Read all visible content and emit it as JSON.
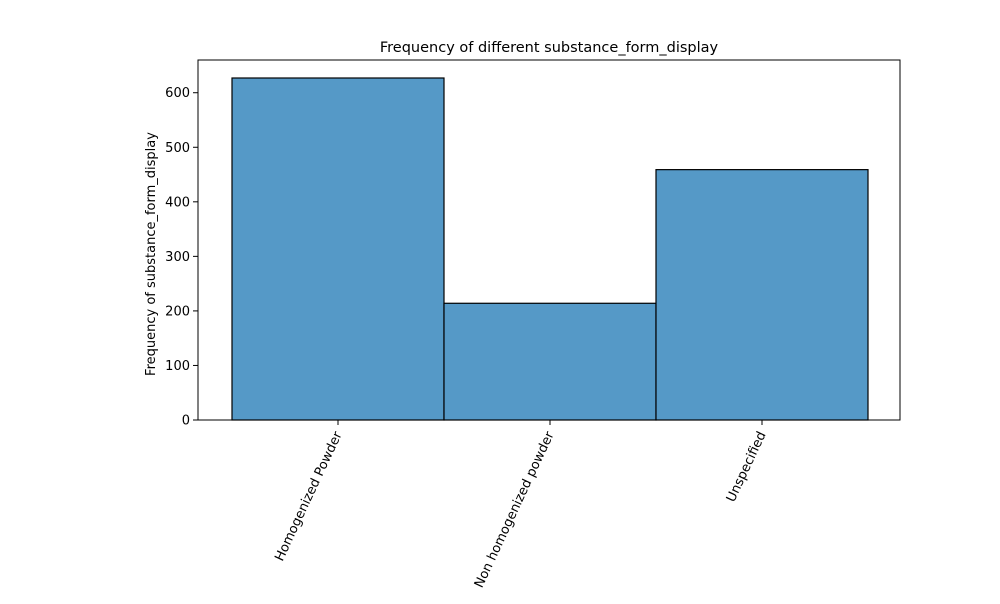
{
  "chart_data": {
    "type": "bar",
    "title": "Frequency of different substance_form_display",
    "xlabel": "",
    "ylabel": "Frequency of substance_form_display",
    "categories": [
      "Homogenized Powder",
      "Non homogenized powder",
      "Unspecified"
    ],
    "values": [
      627,
      214,
      459
    ],
    "ylim": [
      0,
      660
    ],
    "yticks": [
      0,
      100,
      200,
      300,
      400,
      500,
      600
    ],
    "ytick_labels": [
      "0",
      "100",
      "200",
      "300",
      "400",
      "500",
      "600"
    ],
    "grid": false,
    "legend": "none",
    "colors": {
      "bar_fill": "#5599c7",
      "bar_edge": "#000000",
      "axis": "#000000",
      "background": "#ffffff"
    }
  }
}
